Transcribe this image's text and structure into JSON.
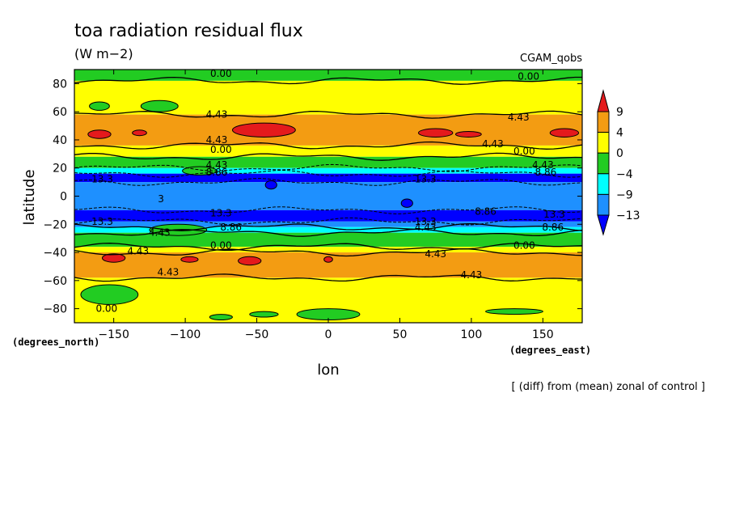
{
  "chart_data": {
    "type": "heatmap",
    "title": "toa radiation residual flux",
    "units": "(W m−2)",
    "dataset": "CGAM_qobs",
    "xlabel": "lon",
    "ylabel": "latitude",
    "x_unit_label": "(degrees_east)",
    "y_unit_label": "(degrees_north)",
    "footnote": "[ (diff) from (mean) zonal of control ]",
    "xlim": [
      -177.5,
      177.5
    ],
    "ylim": [
      -90,
      90
    ],
    "x_ticks": [
      -150,
      -100,
      -50,
      0,
      50,
      100,
      150
    ],
    "x_tick_labels": [
      "−150",
      "−100",
      "−50",
      "0",
      "50",
      "100",
      "150"
    ],
    "y_ticks": [
      -80,
      -60,
      -40,
      -20,
      0,
      20,
      40,
      60,
      80
    ],
    "y_tick_labels": [
      "−80",
      "−60",
      "−40",
      "−20",
      "0",
      "20",
      "40",
      "60",
      "80"
    ],
    "colorbar": {
      "labels": [
        "9",
        "4",
        "0",
        "−4",
        "−9",
        "−13"
      ],
      "colors": [
        "#e41a1c",
        "#f39c12",
        "#ffff00",
        "#22cc22",
        "#00ffff",
        "#1e90ff",
        "#0000ff"
      ]
    },
    "zonal_bands": [
      {
        "lat_range": [
          82,
          90
        ],
        "value_class": "-4 to 0"
      },
      {
        "lat_range": [
          58,
          82
        ],
        "value_class": "0 to 4"
      },
      {
        "lat_range": [
          36,
          58
        ],
        "value_class": "4 to 9"
      },
      {
        "lat_range": [
          28,
          36
        ],
        "value_class": "0 to 4"
      },
      {
        "lat_range": [
          20,
          28
        ],
        "value_class": "-4 to 0"
      },
      {
        "lat_range": [
          16,
          20
        ],
        "value_class": "-9 to -4"
      },
      {
        "lat_range": [
          10,
          16
        ],
        "value_class": "below -13"
      },
      {
        "lat_range": [
          -10,
          10
        ],
        "value_class": "-13 to -9"
      },
      {
        "lat_range": [
          -18,
          -10
        ],
        "value_class": "below -13"
      },
      {
        "lat_range": [
          -22,
          -18
        ],
        "value_class": "-13 to -9"
      },
      {
        "lat_range": [
          -26,
          -22
        ],
        "value_class": "-9 to -4"
      },
      {
        "lat_range": [
          -36,
          -26
        ],
        "value_class": "-4 to 0"
      },
      {
        "lat_range": [
          -40,
          -36
        ],
        "value_class": "0 to 4"
      },
      {
        "lat_range": [
          -58,
          -40
        ],
        "value_class": "4 to 9"
      },
      {
        "lat_range": [
          -90,
          -58
        ],
        "value_class": "0 to 4"
      }
    ],
    "contour_labels": [
      {
        "text": "0.00",
        "lon": -75,
        "lat": 87
      },
      {
        "text": "0.00",
        "lon": 140,
        "lat": 85
      },
      {
        "text": "4.43",
        "lon": -78,
        "lat": 58
      },
      {
        "text": "4.43",
        "lon": 133,
        "lat": 56
      },
      {
        "text": "4.43",
        "lon": -78,
        "lat": 40
      },
      {
        "text": "4.43",
        "lon": 115,
        "lat": 37
      },
      {
        "text": "0.00",
        "lon": -75,
        "lat": 33
      },
      {
        "text": "0.00",
        "lon": 137,
        "lat": 32
      },
      {
        "text": "4.43",
        "lon": -78,
        "lat": 22
      },
      {
        "text": "4.43",
        "lon": 150,
        "lat": 22
      },
      {
        "text": "8.86",
        "lon": -78,
        "lat": 17
      },
      {
        "text": "8.86",
        "lon": 152,
        "lat": 17
      },
      {
        "text": "13.3",
        "lon": -158,
        "lat": 12
      },
      {
        "text": "13.3",
        "lon": 68,
        "lat": 12
      },
      {
        "text": "3",
        "lon": -117,
        "lat": -2
      },
      {
        "text": "13.3",
        "lon": -75,
        "lat": -12
      },
      {
        "text": "8.86",
        "lon": 110,
        "lat": -11
      },
      {
        "text": "13.3",
        "lon": 158,
        "lat": -13
      },
      {
        "text": "13.3",
        "lon": -158,
        "lat": -18
      },
      {
        "text": "13.3",
        "lon": 68,
        "lat": -18
      },
      {
        "text": "8.86",
        "lon": -68,
        "lat": -22
      },
      {
        "text": "4.43",
        "lon": 68,
        "lat": -22
      },
      {
        "text": "8.86",
        "lon": 157,
        "lat": -22
      },
      {
        "text": "4.43",
        "lon": -118,
        "lat": -26
      },
      {
        "text": "0.00",
        "lon": -75,
        "lat": -35
      },
      {
        "text": "0.00",
        "lon": 137,
        "lat": -35
      },
      {
        "text": "4.43",
        "lon": -133,
        "lat": -39
      },
      {
        "text": "4.43",
        "lon": 75,
        "lat": -41
      },
      {
        "text": "4.43",
        "lon": -112,
        "lat": -54
      },
      {
        "text": "4.43",
        "lon": 100,
        "lat": -56
      },
      {
        "text": "0.00",
        "lon": -155,
        "lat": -80
      }
    ],
    "blobs": [
      {
        "lon": -160,
        "lat": 44,
        "rlon": 8,
        "rlat": 3,
        "cls": 0
      },
      {
        "lon": -45,
        "lat": 47,
        "rlon": 22,
        "rlat": 5,
        "cls": 0
      },
      {
        "lon": 75,
        "lat": 45,
        "rlon": 12,
        "rlat": 3,
        "cls": 0
      },
      {
        "lon": 165,
        "lat": 45,
        "rlon": 10,
        "rlat": 3,
        "cls": 0
      },
      {
        "lon": -132,
        "lat": 45,
        "rlon": 5,
        "rlat": 2,
        "cls": 0
      },
      {
        "lon": 98,
        "lat": 44,
        "rlon": 9,
        "rlat": 2,
        "cls": 0
      },
      {
        "lon": -150,
        "lat": -44,
        "rlon": 8,
        "rlat": 3,
        "cls": 0
      },
      {
        "lon": -55,
        "lat": -46,
        "rlon": 8,
        "rlat": 3,
        "cls": 0
      },
      {
        "lon": -97,
        "lat": -45,
        "rlon": 6,
        "rlat": 2,
        "cls": 0
      },
      {
        "lon": 0,
        "lat": -45,
        "rlon": 3,
        "rlat": 2,
        "cls": 0
      },
      {
        "lon": -160,
        "lat": 64,
        "rlon": 7,
        "rlat": 3,
        "cls": 3
      },
      {
        "lon": -118,
        "lat": 64,
        "rlon": 13,
        "rlat": 4,
        "cls": 3
      },
      {
        "lon": -153,
        "lat": -70,
        "rlon": 20,
        "rlat": 7,
        "cls": 3
      },
      {
        "lon": -75,
        "lat": -86,
        "rlon": 8,
        "rlat": 2,
        "cls": 3
      },
      {
        "lon": -45,
        "lat": -84,
        "rlon": 10,
        "rlat": 2,
        "cls": 3
      },
      {
        "lon": 0,
        "lat": -84,
        "rlon": 22,
        "rlat": 4,
        "cls": 3
      },
      {
        "lon": 130,
        "lat": -82,
        "rlon": 20,
        "rlat": 2,
        "cls": 3
      },
      {
        "lon": -90,
        "lat": 18,
        "rlon": 12,
        "rlat": 3,
        "cls": 3
      },
      {
        "lon": -105,
        "lat": -24,
        "rlon": 20,
        "rlat": 4,
        "cls": 3
      },
      {
        "lon": -40,
        "lat": 8,
        "rlon": 4,
        "rlat": 3,
        "cls": 6
      },
      {
        "lon": 55,
        "lat": -5,
        "rlon": 4,
        "rlat": 3,
        "cls": 6
      }
    ]
  }
}
